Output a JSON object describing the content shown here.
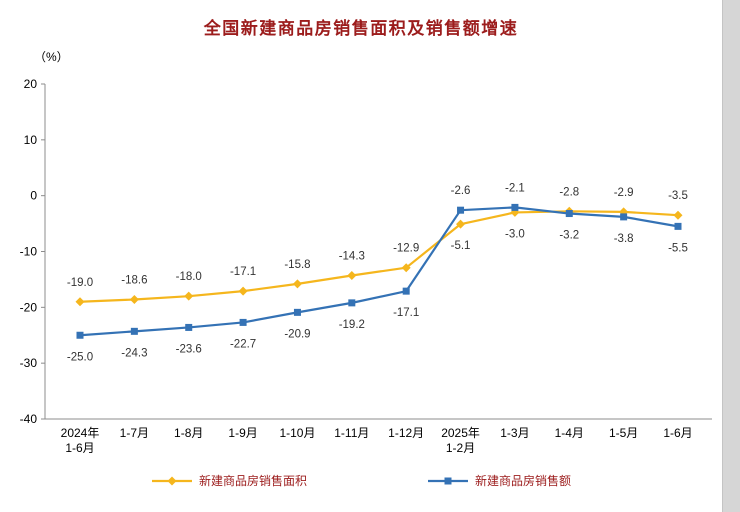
{
  "title": "全国新建商品房销售面积及销售额增速",
  "y_unit_label": "（%）",
  "colors": {
    "title": "#9c1c1c",
    "legend_text": "#9c1c1c",
    "label_text": "#333333",
    "axis": "#8c8c8c",
    "area_series": "#f5b61d",
    "value_series": "#3472b5"
  },
  "chart_data": {
    "type": "line",
    "categories": [
      "2024年\n1-6月",
      "1-7月",
      "1-8月",
      "1-9月",
      "1-10月",
      "1-11月",
      "1-12月",
      "2025年\n1-2月",
      "1-3月",
      "1-4月",
      "1-5月",
      "1-6月"
    ],
    "series": [
      {
        "name": "新建商品房销售面积",
        "marker": "diamond",
        "color": "#f5b61d",
        "values": [
          -19.0,
          -18.6,
          -18.0,
          -17.1,
          -15.8,
          -14.3,
          -12.9,
          -5.1,
          -3.0,
          -2.8,
          -2.9,
          -3.5
        ]
      },
      {
        "name": "新建商品房销售额",
        "marker": "square",
        "color": "#3472b5",
        "values": [
          -25.0,
          -24.3,
          -23.6,
          -22.7,
          -20.9,
          -19.2,
          -17.1,
          -2.6,
          -2.1,
          -3.2,
          -3.8,
          -5.5
        ]
      }
    ],
    "ylim": [
      -40,
      20
    ],
    "yticks": [
      20,
      10,
      0,
      -10,
      -20,
      -30,
      -40
    ],
    "grid": false,
    "legend_position": "bottom"
  }
}
